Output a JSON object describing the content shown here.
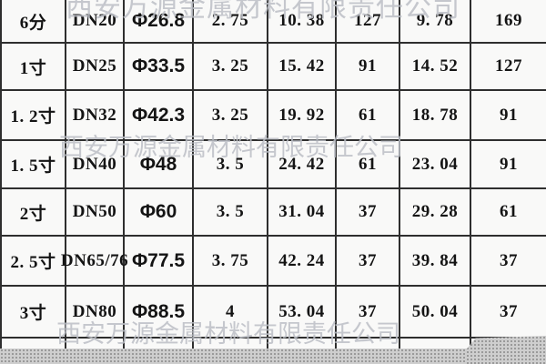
{
  "watermark": {
    "text": "西安万源金属材料有限责任公司",
    "color": "#bcbfc6"
  },
  "table": {
    "rows": [
      [
        "6分",
        "DN20",
        "Φ26.8",
        "2. 75",
        "10. 38",
        "127",
        "9. 78",
        "169"
      ],
      [
        "1寸",
        "DN25",
        "Φ33.5",
        "3. 25",
        "15. 42",
        "91",
        "14. 52",
        "127"
      ],
      [
        "1. 2寸",
        "DN32",
        "Φ42.3",
        "3. 25",
        "19. 92",
        "61",
        "18. 78",
        "91"
      ],
      [
        "1. 5寸",
        "DN40",
        "Φ48",
        "3. 5",
        "24. 42",
        "61",
        "23. 04",
        "91"
      ],
      [
        "2寸",
        "DN50",
        "Φ60",
        "3. 5",
        "31. 04",
        "37",
        "29. 28",
        "61"
      ],
      [
        "2. 5寸",
        "DN65/76",
        "Φ77.5",
        "3. 75",
        "42. 24",
        "37",
        "39. 84",
        "37"
      ],
      [
        "3寸",
        "DN80",
        "Φ88.5",
        "4",
        "53. 04",
        "37",
        "50. 04",
        "37"
      ]
    ],
    "grid_line_color": "#2e2e2e",
    "bottom_strip_color": "#cecece"
  },
  "chart_data": {
    "type": "table",
    "title": "",
    "columns": [
      "size-inch",
      "dn-designation",
      "outer-diameter",
      "wall-thickness",
      "weight-1",
      "qty-1",
      "weight-2",
      "qty-2"
    ],
    "rows": [
      [
        "6分",
        "DN20",
        "Φ26.8",
        "2.75",
        "10.38",
        "127",
        "9.78",
        "169"
      ],
      [
        "1寸",
        "DN25",
        "Φ33.5",
        "3.25",
        "15.42",
        "91",
        "14.52",
        "127"
      ],
      [
        "1.2寸",
        "DN32",
        "Φ42.3",
        "3.25",
        "19.92",
        "61",
        "18.78",
        "91"
      ],
      [
        "1.5寸",
        "DN40",
        "Φ48",
        "3.5",
        "24.42",
        "61",
        "23.04",
        "91"
      ],
      [
        "2寸",
        "DN50",
        "Φ60",
        "3.5",
        "31.04",
        "37",
        "29.28",
        "61"
      ],
      [
        "2.5寸",
        "DN65/76",
        "Φ77.5",
        "3.75",
        "42.24",
        "37",
        "39.84",
        "37"
      ],
      [
        "3寸",
        "DN80",
        "Φ88.5",
        "4",
        "53.04",
        "37",
        "50.04",
        "37"
      ]
    ]
  }
}
